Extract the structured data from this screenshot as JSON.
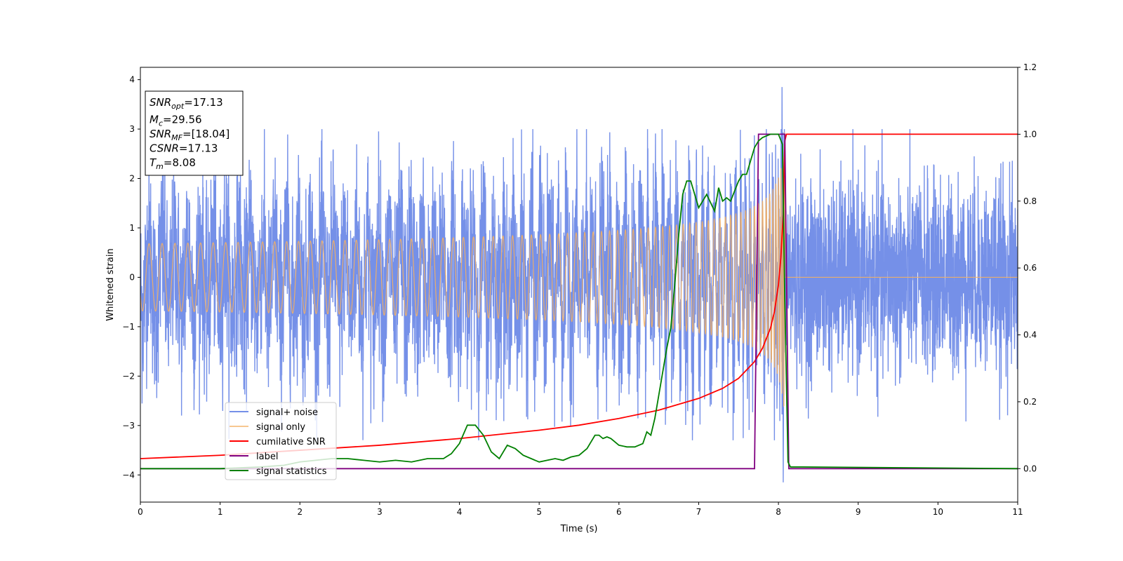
{
  "chart_data": {
    "type": "line",
    "xlabel": "Time (s)",
    "ylabel": "Whitened strain",
    "xlim": [
      0,
      11
    ],
    "ylim": [
      -4.55,
      4.25
    ],
    "y2lim": [
      -0.1,
      1.2
    ],
    "xticks": [
      "0",
      "1",
      "2",
      "3",
      "4",
      "5",
      "6",
      "7",
      "8",
      "9",
      "10",
      "11"
    ],
    "yticks": [
      "−4",
      "−3",
      "−2",
      "−1",
      "0",
      "1",
      "2",
      "3",
      "4"
    ],
    "y2ticks": [
      "0.0",
      "0.2",
      "0.4",
      "0.6",
      "0.8",
      "1.0",
      "1.2"
    ],
    "grid": false,
    "legend_position": "lower-left",
    "annotation": {
      "lines": [
        {
          "prefix": "SNR",
          "sub": "opt",
          "value": "=17.13"
        },
        {
          "prefix": "M",
          "sub": "c",
          "value": "=29.56"
        },
        {
          "prefix": "SNR",
          "sub": "MF",
          "value": "=[18.04]"
        },
        {
          "prefix": "CSNR",
          "sub": "",
          "value": "=17.13"
        },
        {
          "prefix": "T",
          "sub": "m",
          "value": "=8.08"
        }
      ]
    },
    "series": [
      {
        "name": "signal+ noise",
        "color": "#7590e8",
        "axis": "left",
        "kind": "noise",
        "noise_std": 0.95,
        "peak_time": 8.08,
        "peak_max": 3.85,
        "peak_min": -4.15,
        "range": [
          0,
          11
        ]
      },
      {
        "name": "signal only",
        "color": "#f5b062",
        "axis": "left",
        "kind": "chirp",
        "merger_time": 8.08,
        "final_amplitude": 3.05,
        "range": [
          0,
          11
        ]
      },
      {
        "name": "cumilative SNR",
        "color": "#ff0000",
        "axis": "right",
        "x": [
          0,
          1,
          2,
          3,
          4,
          5,
          5.5,
          6,
          6.5,
          7,
          7.3,
          7.5,
          7.7,
          7.8,
          7.9,
          7.95,
          8.0,
          8.03,
          8.06,
          8.08,
          8.1,
          11
        ],
        "y": [
          0.03,
          0.04,
          0.055,
          0.07,
          0.09,
          0.115,
          0.13,
          0.15,
          0.175,
          0.21,
          0.24,
          0.27,
          0.32,
          0.36,
          0.42,
          0.47,
          0.55,
          0.63,
          0.76,
          0.98,
          1.0,
          1.0
        ]
      },
      {
        "name": "label",
        "color": "#800080",
        "axis": "right",
        "x": [
          0,
          7.7,
          7.75,
          8.08,
          8.13,
          11
        ],
        "y": [
          0,
          0,
          1,
          1,
          0,
          0
        ]
      },
      {
        "name": "signal statistics",
        "color": "#008000",
        "axis": "right",
        "x": [
          0,
          1,
          1.5,
          1.8,
          2.0,
          2.2,
          2.4,
          2.6,
          2.8,
          3.0,
          3.2,
          3.4,
          3.6,
          3.8,
          3.9,
          4.0,
          4.1,
          4.2,
          4.3,
          4.4,
          4.5,
          4.6,
          4.7,
          4.8,
          4.9,
          5.0,
          5.1,
          5.2,
          5.3,
          5.4,
          5.5,
          5.6,
          5.7,
          5.75,
          5.8,
          5.85,
          5.9,
          6.0,
          6.1,
          6.2,
          6.3,
          6.35,
          6.4,
          6.45,
          6.5,
          6.6,
          6.65,
          6.7,
          6.75,
          6.8,
          6.85,
          6.9,
          7.0,
          7.05,
          7.1,
          7.2,
          7.25,
          7.3,
          7.35,
          7.4,
          7.5,
          7.55,
          7.6,
          7.65,
          7.7,
          7.75,
          7.8,
          7.9,
          8.0,
          8.05,
          8.08,
          8.12,
          8.15,
          8.3,
          11
        ],
        "y": [
          0.0,
          0.0,
          0.005,
          0.01,
          0.02,
          0.025,
          0.03,
          0.03,
          0.025,
          0.02,
          0.025,
          0.02,
          0.03,
          0.03,
          0.045,
          0.075,
          0.13,
          0.13,
          0.1,
          0.05,
          0.03,
          0.07,
          0.06,
          0.04,
          0.03,
          0.02,
          0.025,
          0.03,
          0.025,
          0.035,
          0.04,
          0.06,
          0.1,
          0.1,
          0.09,
          0.095,
          0.09,
          0.07,
          0.065,
          0.065,
          0.075,
          0.11,
          0.1,
          0.15,
          0.22,
          0.36,
          0.42,
          0.55,
          0.7,
          0.82,
          0.86,
          0.86,
          0.78,
          0.8,
          0.82,
          0.77,
          0.84,
          0.8,
          0.81,
          0.8,
          0.86,
          0.88,
          0.88,
          0.92,
          0.96,
          0.98,
          0.99,
          1.0,
          1.0,
          0.97,
          0.5,
          0.02,
          0.005,
          0.005,
          0.0
        ]
      }
    ]
  }
}
